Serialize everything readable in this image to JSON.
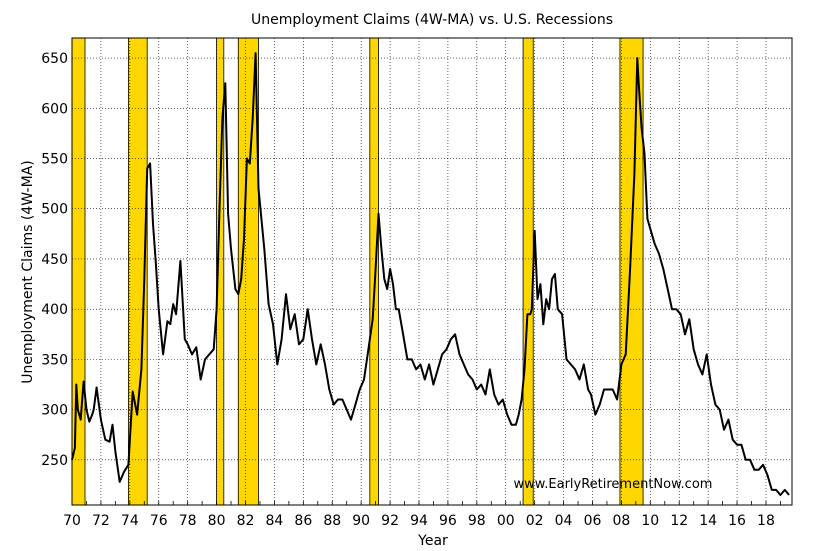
{
  "chart_data": {
    "type": "line",
    "title": "Unemployment Claims (4W-MA) vs. U.S. Recessions",
    "xlabel": "Year",
    "ylabel": "Unemployment Claims (4W-MA)",
    "watermark": "www.EarlyRetirementNow.com",
    "xlim": [
      1970,
      2019.8
    ],
    "ylim": [
      205,
      670
    ],
    "grid": true,
    "x_ticks": [
      1970,
      1972,
      1974,
      1976,
      1978,
      1980,
      1982,
      1984,
      1986,
      1988,
      1990,
      1992,
      1994,
      1996,
      1998,
      2000,
      2002,
      2004,
      2006,
      2008,
      2010,
      2012,
      2014,
      2016,
      2018
    ],
    "x_tick_labels": [
      "70",
      "72",
      "74",
      "76",
      "78",
      "80",
      "82",
      "84",
      "86",
      "88",
      "90",
      "92",
      "94",
      "96",
      "98",
      "00",
      "02",
      "04",
      "06",
      "08",
      "10",
      "12",
      "14",
      "16",
      "18"
    ],
    "y_ticks": [
      250,
      300,
      350,
      400,
      450,
      500,
      550,
      600,
      650
    ],
    "y_tick_labels": [
      "250",
      "300",
      "350",
      "400",
      "450",
      "500",
      "550",
      "600",
      "650"
    ],
    "colors": {
      "line": "#000000",
      "recession_fill": "#FFD700",
      "recession_edge": "#000000",
      "grid": "#000000"
    },
    "recessions": [
      [
        1970.0,
        1970.9
      ],
      [
        1973.9,
        1975.2
      ],
      [
        1980.0,
        1980.5
      ],
      [
        1981.5,
        1982.9
      ],
      [
        1990.6,
        1991.2
      ],
      [
        2001.2,
        2001.9
      ],
      [
        2007.9,
        2009.5
      ]
    ],
    "series": [
      {
        "x": [
          1970.0,
          1970.2,
          1970.3,
          1970.4,
          1970.6,
          1970.8,
          1971.0,
          1971.2,
          1971.4,
          1971.5,
          1971.7,
          1972.0,
          1972.3,
          1972.6,
          1972.8,
          1973.0,
          1973.3,
          1973.6,
          1973.9,
          1974.2,
          1974.5,
          1974.8,
          1975.0,
          1975.2,
          1975.4,
          1975.6,
          1975.8,
          1976.0,
          1976.3,
          1976.6,
          1976.8,
          1977.0,
          1977.2,
          1977.5,
          1977.8,
          1978.0,
          1978.3,
          1978.6,
          1978.9,
          1979.2,
          1979.5,
          1979.8,
          1980.0,
          1980.2,
          1980.4,
          1980.6,
          1980.8,
          1981.0,
          1981.3,
          1981.5,
          1981.7,
          1981.9,
          1982.1,
          1982.3,
          1982.5,
          1982.7,
          1982.9,
          1983.1,
          1983.3,
          1983.6,
          1983.9,
          1984.2,
          1984.5,
          1984.8,
          1985.1,
          1985.4,
          1985.7,
          1986.0,
          1986.3,
          1986.6,
          1986.9,
          1987.2,
          1987.5,
          1987.8,
          1988.1,
          1988.4,
          1988.7,
          1989.0,
          1989.3,
          1989.6,
          1989.9,
          1990.2,
          1990.5,
          1990.8,
          1991.0,
          1991.2,
          1991.4,
          1991.6,
          1991.8,
          1992.0,
          1992.2,
          1992.4,
          1992.6,
          1992.9,
          1993.2,
          1993.5,
          1993.8,
          1994.1,
          1994.4,
          1994.7,
          1995.0,
          1995.3,
          1995.6,
          1995.9,
          1996.2,
          1996.5,
          1996.8,
          1997.1,
          1997.4,
          1997.7,
          1998.0,
          1998.3,
          1998.6,
          1998.9,
          1999.2,
          1999.5,
          1999.8,
          2000.1,
          2000.4,
          2000.7,
          2000.9,
          2001.1,
          2001.3,
          2001.5,
          2001.7,
          2001.8,
          2002.0,
          2002.2,
          2002.4,
          2002.6,
          2002.8,
          2003.0,
          2003.2,
          2003.4,
          2003.6,
          2003.9,
          2004.2,
          2004.5,
          2004.8,
          2005.1,
          2005.4,
          2005.7,
          2005.9,
          2006.2,
          2006.5,
          2006.8,
          2007.1,
          2007.4,
          2007.7,
          2008.0,
          2008.3,
          2008.6,
          2008.9,
          2009.1,
          2009.2,
          2009.4,
          2009.6,
          2009.8,
          2010.0,
          2010.3,
          2010.6,
          2010.9,
          2011.2,
          2011.5,
          2011.8,
          2012.1,
          2012.4,
          2012.7,
          2013.0,
          2013.3,
          2013.6,
          2013.9,
          2014.2,
          2014.5,
          2014.8,
          2015.1,
          2015.4,
          2015.7,
          2016.0,
          2016.3,
          2016.6,
          2016.9,
          2017.2,
          2017.5,
          2017.8,
          2018.1,
          2018.4,
          2018.7,
          2019.0,
          2019.3,
          2019.6
        ],
        "y": [
          250,
          262,
          325,
          300,
          290,
          328,
          300,
          288,
          295,
          300,
          322,
          290,
          270,
          268,
          285,
          258,
          228,
          238,
          245,
          318,
          295,
          340,
          430,
          540,
          545,
          485,
          445,
          400,
          355,
          388,
          385,
          405,
          395,
          448,
          370,
          365,
          355,
          362,
          330,
          350,
          355,
          360,
          400,
          500,
          590,
          625,
          495,
          460,
          420,
          415,
          430,
          470,
          550,
          545,
          590,
          655,
          520,
          490,
          460,
          405,
          385,
          345,
          370,
          415,
          380,
          395,
          365,
          370,
          400,
          370,
          345,
          365,
          345,
          320,
          305,
          310,
          310,
          300,
          290,
          305,
          320,
          330,
          360,
          390,
          440,
          495,
          460,
          430,
          420,
          440,
          425,
          400,
          400,
          375,
          350,
          350,
          340,
          345,
          330,
          345,
          325,
          340,
          355,
          360,
          370,
          375,
          355,
          345,
          335,
          330,
          320,
          325,
          315,
          340,
          315,
          305,
          310,
          295,
          285,
          285,
          295,
          310,
          340,
          395,
          395,
          400,
          478,
          410,
          425,
          385,
          410,
          400,
          430,
          435,
          400,
          395,
          350,
          345,
          340,
          330,
          345,
          320,
          315,
          295,
          305,
          320,
          320,
          320,
          310,
          345,
          355,
          440,
          535,
          650,
          625,
          580,
          555,
          490,
          480,
          465,
          455,
          440,
          420,
          400,
          400,
          395,
          375,
          390,
          360,
          345,
          335,
          355,
          325,
          305,
          300,
          280,
          290,
          270,
          265,
          265,
          250,
          250,
          240,
          240,
          245,
          235,
          220,
          220,
          215,
          220,
          215
        ]
      }
    ]
  }
}
